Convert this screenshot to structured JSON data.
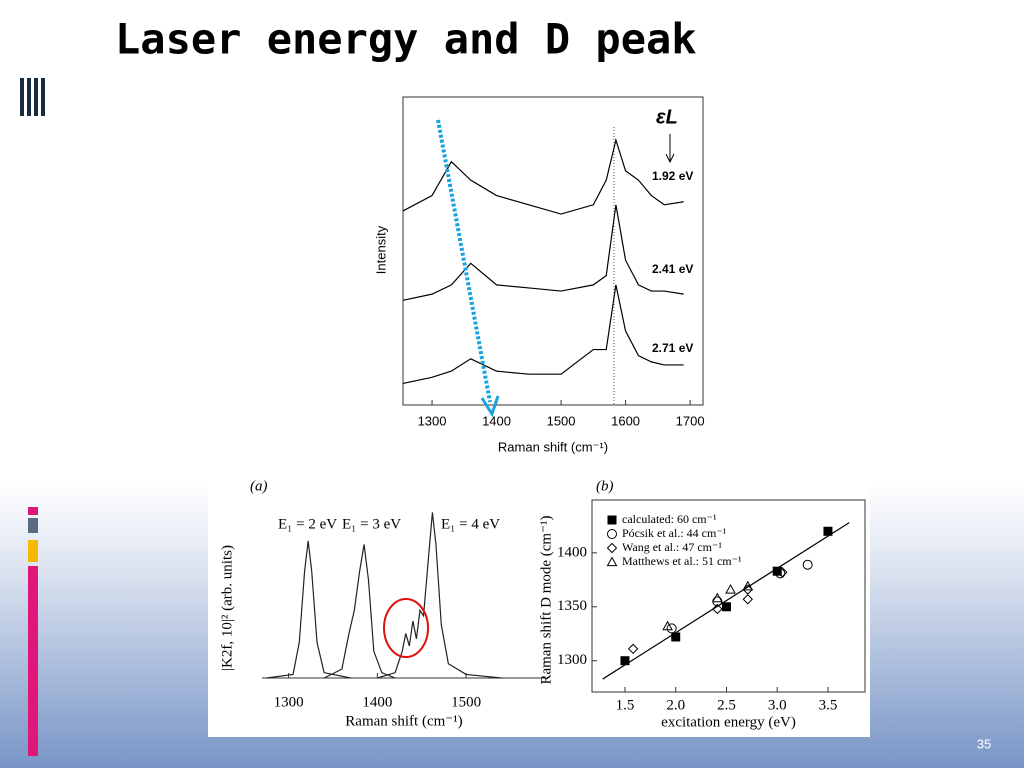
{
  "slide": {
    "title": "Laser energy and D peak",
    "page_number": 35
  },
  "chart_data": [
    {
      "type": "line",
      "xlabel": "Raman shift (cm⁻¹)",
      "ylabel": "Intensity",
      "annotation": "εL",
      "xlim": [
        1255,
        1720
      ],
      "xticks": [
        1300,
        1400,
        1500,
        1600,
        1700
      ],
      "ylim": [
        0,
        100
      ],
      "reference_x": 1582,
      "series": [
        {
          "name": "1.92 eV",
          "color": "#000000",
          "x": [
            1255,
            1300,
            1330,
            1360,
            1400,
            1450,
            1500,
            1550,
            1570,
            1585,
            1600,
            1620,
            1640,
            1660,
            1690
          ],
          "values": [
            63,
            68,
            79,
            73,
            68,
            65,
            62,
            65,
            73,
            86,
            76,
            73,
            68,
            65,
            66
          ]
        },
        {
          "name": "2.41 eV",
          "color": "#000000",
          "x": [
            1255,
            1300,
            1330,
            1360,
            1400,
            1450,
            1500,
            1550,
            1570,
            1585,
            1600,
            1620,
            1640,
            1660,
            1690
          ],
          "values": [
            34,
            36,
            39,
            46,
            39,
            38,
            37,
            39,
            42,
            65,
            47,
            39,
            37,
            37,
            36
          ]
        },
        {
          "name": "2.71 eV",
          "color": "#000000",
          "x": [
            1255,
            1300,
            1330,
            1360,
            1400,
            1450,
            1500,
            1550,
            1570,
            1585,
            1600,
            1620,
            1640,
            1660,
            1690
          ],
          "values": [
            7,
            9,
            11,
            15,
            11,
            10,
            10,
            18,
            18,
            39,
            24,
            16,
            14,
            13,
            13
          ]
        }
      ]
    },
    {
      "type": "line",
      "label": "(a)",
      "xlabel": "Raman shift (cm⁻¹)",
      "ylabel": "|K2f, 10|² (arb. units)",
      "xlim": [
        1270,
        1590
      ],
      "xticks": [
        1300,
        1400,
        1500
      ],
      "ylim": [
        0,
        100
      ],
      "series": [
        {
          "name": "E₁ = 2 eV",
          "color": "#222222",
          "x": [
            1275,
            1305,
            1312,
            1318,
            1322,
            1326,
            1332,
            1340,
            1370
          ],
          "values": [
            0,
            2,
            20,
            60,
            77,
            60,
            20,
            3,
            0
          ]
        },
        {
          "name": "E₁ = 3 eV",
          "color": "#222222",
          "x": [
            1340,
            1360,
            1368,
            1374,
            1380,
            1385,
            1390,
            1396,
            1405,
            1420
          ],
          "values": [
            0,
            5,
            25,
            38,
            60,
            75,
            55,
            15,
            3,
            0
          ]
        },
        {
          "name": "E₁ = 4 eV",
          "color": "#222222",
          "x": [
            1400,
            1420,
            1428,
            1432,
            1436,
            1440,
            1444,
            1448,
            1452,
            1458,
            1462,
            1466,
            1472,
            1480,
            1500,
            1540
          ],
          "values": [
            0,
            3,
            15,
            25,
            18,
            32,
            22,
            38,
            35,
            70,
            93,
            75,
            30,
            8,
            2,
            0
          ]
        }
      ]
    },
    {
      "type": "scatter",
      "label": "(b)",
      "xlabel": "excitation energy (eV)",
      "ylabel": "Raman shift D mode (cm⁻¹)",
      "xlim": [
        1.175,
        3.865
      ],
      "xticks": [
        1.5,
        {
          "value": 2,
          "label": "2.0"
        },
        2.5,
        {
          "value": 3,
          "label": "3.0"
        },
        3.5
      ],
      "ylim": [
        1271,
        1449
      ],
      "yticks": [
        1300,
        1350,
        1400
      ],
      "fit_line": {
        "x": [
          1.28,
          3.71
        ],
        "values": [
          1283,
          1428
        ]
      },
      "series": [
        {
          "name": "calculated: 60 cm⁻¹",
          "marker": "square",
          "color": "#000000",
          "x": [
            1.5,
            2.0,
            2.5,
            3.0,
            3.5
          ],
          "values": [
            1300,
            1322,
            1350,
            1383,
            1420
          ]
        },
        {
          "name": "Pócsik et al.: 44 cm⁻¹",
          "marker": "circle",
          "color": "#000000",
          "x": [
            1.96,
            2.41,
            3.03,
            3.3
          ],
          "values": [
            1330,
            1355,
            1381,
            1389
          ]
        },
        {
          "name": "Wang et al.: 47 cm⁻¹",
          "marker": "diamond",
          "color": "#000000",
          "x": [
            1.58,
            2.41,
            2.71,
            2.71,
            3.05
          ],
          "values": [
            1311,
            1348,
            1357,
            1366,
            1382
          ]
        },
        {
          "name": "Matthews et al.: 51 cm⁻¹",
          "marker": "triangle",
          "color": "#000000",
          "x": [
            1.92,
            2.41,
            2.54,
            2.71
          ],
          "values": [
            1332,
            1358,
            1366,
            1369
          ]
        }
      ]
    }
  ]
}
